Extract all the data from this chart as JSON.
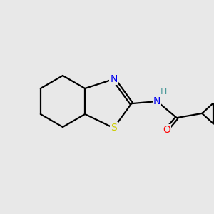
{
  "background_color": "#e8e8e8",
  "bond_color": "#000000",
  "atom_colors": {
    "N": "#0000ee",
    "S": "#cccc00",
    "O": "#ff0000",
    "H": "#4a9999",
    "C": "#000000"
  },
  "figsize": [
    3.0,
    3.0
  ],
  "dpi": 100,
  "bond_lw": 1.6
}
